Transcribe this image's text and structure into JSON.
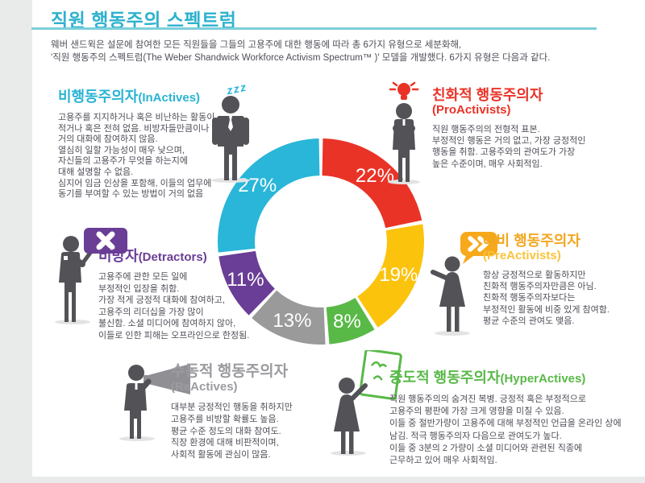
{
  "page": {
    "title": "직원 행동주의 스펙트럼",
    "intro_line1": "웨버 샌드윅은 설문에 참여한 모든 직원들을 그들의 고용주에 대한 행동에 따라 총 6가지 유형으로 세분화해,",
    "intro_line2": "'직원 행동주의 스펙트럼(The Weber Shandwick Workforce Activism Spectrum™ )' 모델을 개발했다. 6가지 유형은 다음과 같다."
  },
  "colors": {
    "title_teal": "#2db2ce",
    "rule_teal": "#7ccfdb",
    "body_text": "#4e4e58",
    "icon_gray": "#525257",
    "page_bg": "#e9eaea"
  },
  "chart_data": {
    "type": "pie",
    "subtype": "donut",
    "unit": "%",
    "direction": "clockwise",
    "start_angle_deg": 0,
    "inner_radius_ratio": 0.64,
    "legend_position": "around",
    "segments": [
      {
        "id": "proactivists",
        "label": "친화적 행동주의자 (ProActivists)",
        "value": 22,
        "color": "#ea3327"
      },
      {
        "id": "preactivists",
        "label": "예비 행동주의자 (PreActivists)",
        "value": 19,
        "color": "#fcc30d"
      },
      {
        "id": "hyperactives",
        "label": "중도적 행동주의자 (HyperActives)",
        "value": 8,
        "color": "#58b947"
      },
      {
        "id": "reactives",
        "label": "수동적 행동주의자 (ReActives)",
        "value": 13,
        "color": "#9a9a9a"
      },
      {
        "id": "detractors",
        "label": "비방자 (Detractors)",
        "value": 11,
        "color": "#6a3d96"
      },
      {
        "id": "inactives",
        "label": "비행동주의자 (InActives)",
        "value": 27,
        "color": "#29b6d8"
      }
    ]
  },
  "sections": {
    "inactives": {
      "title_ko": "비행동주의자",
      "title_en": "(InActives)",
      "color": "#29b3d4",
      "zzz": "zzz",
      "desc": "고용주를 지지하거나 혹은 비난하는 활동이\n적거나 혹은 전혀 없음. 비방자들만큼이나\n거의 대화에 참여하지 않음.\n열심히 일할 가능성이 매우 낮으며,\n자신들의 고용주가 무엇을 하는지에\n대해 설명할 수 없음.\n심지어 임금 인상을 포함해, 이들의 업무에\n동기를 부여할 수 있는 방법이 거의 없음"
    },
    "proactivists": {
      "title_ko": "친화적 행동주의자",
      "title_en": "(ProActivists)",
      "color": "#ea3327",
      "desc": "직원 행동주의의 전형적 표본.\n부정적인 행동은 거의 없고, 가장 긍정적인\n행동을 취함. 고용주와의 관여도가 가장\n높은 수준이며, 매우 사회적임."
    },
    "detractors": {
      "title_ko": "비방자",
      "title_en": "(Detractors)",
      "color": "#6a3d96",
      "desc": "고용주에 관한 모든 일에\n부정적인 입장을 취함.\n가장 적게 긍정적 대화에 참여하고,\n고용주의 리더십을 가장 많이\n불신함. 소셜 미디어에 참여하지 않아,\n이들로 인한 피해는 오프라인으로 한정됨."
    },
    "preactivists": {
      "title_ko": "예비 행동주의자",
      "title_en": "(PreActivists)",
      "color": "#f2a71e",
      "desc": "항상 긍정적으로 활동하지만\n친화적 행동주의자만큼은 아님.\n친화적 행동주의자보다는\n부정적인 활동에 비중 있게 참여함.\n평균 수준의 관여도 맺음."
    },
    "reactives": {
      "title_ko": "수동적 행동주의자",
      "title_en": "(ReActives)",
      "color": "#9b9ba0",
      "desc": "대부분 긍정적인 행동을 취하지만\n고용주를 비방할 확률도 높음.\n평균 수준 정도의 대화 참여도.\n직장 환경에 대해 비판적이며,\n사회적 활동에 관심이 많음."
    },
    "hyperactives": {
      "title_ko": "중도적 행동주의자",
      "title_en": "(HyperActives)",
      "color": "#58b947",
      "desc": "직원 행동주의의 숨겨진 복병. 긍정적 혹은 부정적으로\n고용주의 평판에 가장 크게 영향을 미칠 수 있음.\n이들 중 절반가량이 고용주에 대해 부정적인 언급을 온라인 상에\n남김. 적극 행동주의자 다음으로 관여도가 높다.\n이들 중 3분의 2 가량이 소셜 미디어와 관련된 직종에\n근무하고 있어 매우 사회적임."
    }
  }
}
